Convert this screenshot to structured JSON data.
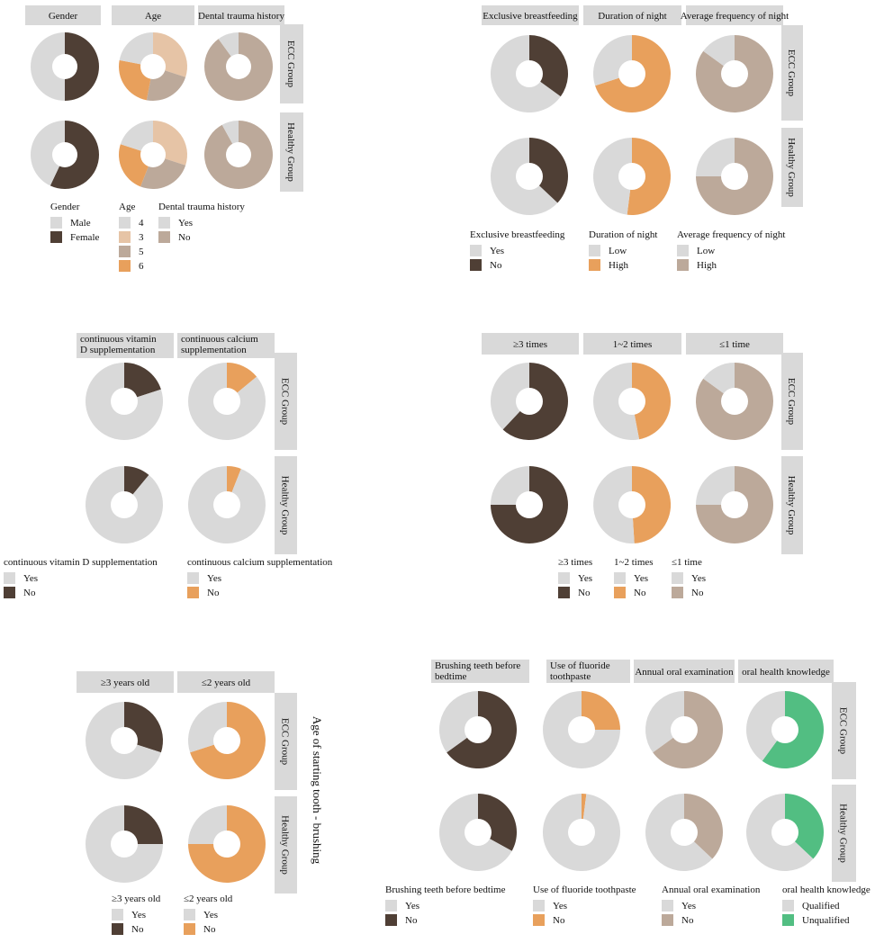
{
  "colors": {
    "strip_bg": "#d9d9d9",
    "light": "#d9d9d9",
    "dark": "#4f3f35",
    "orange": "#e8a05c",
    "peach": "#e6c4a6",
    "tan": "#bca99a",
    "green": "#52be82"
  },
  "group_labels": [
    "ECC Group",
    "Healthy Group"
  ],
  "chart_data": [
    {
      "type": "pie",
      "panels": [
        {
          "title": "Gender",
          "ECC Group": [
            {
              "label": "Male",
              "value": 50
            },
            {
              "label": "Female",
              "value": 50
            }
          ],
          "Healthy Group": [
            {
              "label": "Male",
              "value": 43
            },
            {
              "label": "Female",
              "value": 57
            }
          ]
        },
        {
          "title": "Age",
          "ECC Group": [
            {
              "label": "4",
              "value": 22
            },
            {
              "label": "3",
              "value": 30
            },
            {
              "label": "5",
              "value": 23
            },
            {
              "label": "6",
              "value": 25
            }
          ],
          "Healthy Group": [
            {
              "label": "4",
              "value": 20
            },
            {
              "label": "3",
              "value": 30
            },
            {
              "label": "5",
              "value": 26
            },
            {
              "label": "6",
              "value": 24
            }
          ]
        },
        {
          "title": "Dental trauma history",
          "ECC Group": [
            {
              "label": "Yes",
              "value": 10
            },
            {
              "label": "No",
              "value": 90
            }
          ],
          "Healthy Group": [
            {
              "label": "Yes",
              "value": 8
            },
            {
              "label": "No",
              "value": 92
            }
          ]
        }
      ],
      "legends": [
        {
          "title": "Gender",
          "items": [
            {
              "label": "Male"
            },
            {
              "label": "Female"
            }
          ]
        },
        {
          "title": "Age",
          "items": [
            {
              "label": "4"
            },
            {
              "label": "3"
            },
            {
              "label": "5"
            },
            {
              "label": "6"
            }
          ]
        },
        {
          "title": "Dental trauma history",
          "items": [
            {
              "label": "Yes"
            },
            {
              "label": "No"
            }
          ]
        }
      ]
    },
    {
      "type": "pie",
      "panels": [
        {
          "title": "Exclusive breastfeeding",
          "ECC Group": [
            {
              "label": "Yes",
              "value": 65
            },
            {
              "label": "No",
              "value": 35
            }
          ],
          "Healthy Group": [
            {
              "label": "Yes",
              "value": 63
            },
            {
              "label": "No",
              "value": 37
            }
          ]
        },
        {
          "title": "Duration of night",
          "ECC Group": [
            {
              "label": "Low",
              "value": 30
            },
            {
              "label": "High",
              "value": 70
            }
          ],
          "Healthy Group": [
            {
              "label": "Low",
              "value": 48
            },
            {
              "label": "High",
              "value": 52
            }
          ]
        },
        {
          "title": "Average frequency of night",
          "ECC Group": [
            {
              "label": "Low",
              "value": 15
            },
            {
              "label": "High",
              "value": 85
            }
          ],
          "Healthy Group": [
            {
              "label": "Low",
              "value": 25
            },
            {
              "label": "High",
              "value": 75
            }
          ]
        }
      ],
      "legends": [
        {
          "title": "Exclusive breastfeeding",
          "items": [
            {
              "label": "Yes"
            },
            {
              "label": "No"
            }
          ]
        },
        {
          "title": "Duration of night",
          "items": [
            {
              "label": "Low"
            },
            {
              "label": "High"
            }
          ]
        },
        {
          "title": "Average frequency of night",
          "items": [
            {
              "label": "Low"
            },
            {
              "label": "High"
            }
          ]
        }
      ]
    },
    {
      "type": "pie",
      "panels": [
        {
          "title": "continuous vitamin D supplementation",
          "title_lines": [
            "continuous vitamin",
            "D supplementation"
          ],
          "ECC Group": [
            {
              "label": "Yes",
              "value": 80
            },
            {
              "label": "No",
              "value": 20
            }
          ],
          "Healthy Group": [
            {
              "label": "Yes",
              "value": 89
            },
            {
              "label": "No",
              "value": 11
            }
          ]
        },
        {
          "title": "continuous calcium supplementation",
          "title_lines": [
            "continuous calcium",
            "supplementation"
          ],
          "ECC Group": [
            {
              "label": "Yes",
              "value": 86
            },
            {
              "label": "No",
              "value": 14
            }
          ],
          "Healthy Group": [
            {
              "label": "Yes",
              "value": 94
            },
            {
              "label": "No",
              "value": 6
            }
          ]
        }
      ],
      "legends": [
        {
          "title": "continuous vitamin D supplementation",
          "items": [
            {
              "label": "Yes"
            },
            {
              "label": "No"
            }
          ]
        },
        {
          "title": "continuous calcium supplementation",
          "items": [
            {
              "label": "Yes"
            },
            {
              "label": "No"
            }
          ]
        }
      ]
    },
    {
      "type": "pie",
      "panels": [
        {
          "title": "≥3 times",
          "ECC Group": [
            {
              "label": "Yes",
              "value": 38
            },
            {
              "label": "No",
              "value": 62
            }
          ],
          "Healthy Group": [
            {
              "label": "Yes",
              "value": 25
            },
            {
              "label": "No",
              "value": 75
            }
          ]
        },
        {
          "title": "1~2 times",
          "ECC Group": [
            {
              "label": "Yes",
              "value": 53
            },
            {
              "label": "No",
              "value": 47
            }
          ],
          "Healthy Group": [
            {
              "label": "Yes",
              "value": 51
            },
            {
              "label": "No",
              "value": 49
            }
          ]
        },
        {
          "title": "≤1 time",
          "ECC Group": [
            {
              "label": "Yes",
              "value": 15
            },
            {
              "label": "No",
              "value": 85
            }
          ],
          "Healthy Group": [
            {
              "label": "Yes",
              "value": 25
            },
            {
              "label": "No",
              "value": 75
            }
          ]
        }
      ],
      "legends": [
        {
          "title": "≥3 times",
          "items": [
            {
              "label": "Yes"
            },
            {
              "label": "No"
            }
          ]
        },
        {
          "title": "1~2 times",
          "items": [
            {
              "label": "Yes"
            },
            {
              "label": "No"
            }
          ]
        },
        {
          "title": "≤1 time",
          "items": [
            {
              "label": "Yes"
            },
            {
              "label": "No"
            }
          ]
        }
      ]
    },
    {
      "type": "pie",
      "side_title": "Age of starting tooth - brushing",
      "panels": [
        {
          "title": "≥3 years old",
          "ECC Group": [
            {
              "label": "Yes",
              "value": 70
            },
            {
              "label": "No",
              "value": 30
            }
          ],
          "Healthy Group": [
            {
              "label": "Yes",
              "value": 75
            },
            {
              "label": "No",
              "value": 25
            }
          ]
        },
        {
          "title": "≤2 years old",
          "ECC Group": [
            {
              "label": "Yes",
              "value": 30
            },
            {
              "label": "No",
              "value": 70
            }
          ],
          "Healthy Group": [
            {
              "label": "Yes",
              "value": 25
            },
            {
              "label": "No",
              "value": 75
            }
          ]
        }
      ],
      "legends": [
        {
          "title": "≥3 years old",
          "items": [
            {
              "label": "Yes"
            },
            {
              "label": "No"
            }
          ]
        },
        {
          "title": "≤2 years old",
          "items": [
            {
              "label": "Yes"
            },
            {
              "label": "No"
            }
          ]
        }
      ]
    },
    {
      "type": "pie",
      "panels": [
        {
          "title": "Brushing teeth before bedtime",
          "title_lines": [
            "Brushing teeth before",
            "bedtime"
          ],
          "ECC Group": [
            {
              "label": "Yes",
              "value": 35
            },
            {
              "label": "No",
              "value": 65
            }
          ],
          "Healthy Group": [
            {
              "label": "Yes",
              "value": 67
            },
            {
              "label": "No",
              "value": 33
            }
          ]
        },
        {
          "title": "Use of fluoride toothpaste",
          "title_lines": [
            "Use of fluoride",
            "toothpaste"
          ],
          "ECC Group": [
            {
              "label": "Yes",
              "value": 75
            },
            {
              "label": "No",
              "value": 25
            }
          ],
          "Healthy Group": [
            {
              "label": "Yes",
              "value": 98
            },
            {
              "label": "No",
              "value": 2
            }
          ]
        },
        {
          "title": "Annual oral examination",
          "ECC Group": [
            {
              "label": "Yes",
              "value": 35
            },
            {
              "label": "No",
              "value": 65
            }
          ],
          "Healthy Group": [
            {
              "label": "Yes",
              "value": 63
            },
            {
              "label": "No",
              "value": 37
            }
          ]
        },
        {
          "title": "oral health knowledge",
          "ECC Group": [
            {
              "label": "Qualified",
              "value": 40
            },
            {
              "label": "Unqualified",
              "value": 60
            }
          ],
          "Healthy Group": [
            {
              "label": "Qualified",
              "value": 63
            },
            {
              "label": "Unqualified",
              "value": 37
            }
          ]
        }
      ],
      "legends": [
        {
          "title": "Brushing teeth before bedtime",
          "items": [
            {
              "label": "Yes"
            },
            {
              "label": "No"
            }
          ]
        },
        {
          "title": "Use of fluoride toothpaste",
          "items": [
            {
              "label": "Yes"
            },
            {
              "label": "No"
            }
          ]
        },
        {
          "title": "Annual oral examination",
          "items": [
            {
              "label": "Yes"
            },
            {
              "label": "No"
            }
          ]
        },
        {
          "title": "oral health knowledge",
          "items": [
            {
              "label": "Qualified"
            },
            {
              "label": "Unqualified"
            }
          ]
        }
      ]
    }
  ]
}
